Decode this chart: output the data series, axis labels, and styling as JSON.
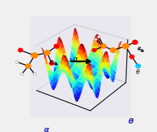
{
  "xlabel": "α",
  "ylabel": "θ",
  "surface_colormap": "jet",
  "background_color": "#f0f0f0",
  "figsize": [
    2.25,
    1.89
  ],
  "dpi": 100,
  "elev": 28,
  "azim": -55,
  "x_range": [
    -3.14159,
    3.14159
  ],
  "y_range": [
    -3.14159,
    3.14159
  ],
  "n_points": 80,
  "panel_color": "#e8e8ee",
  "xlabel_color": "#3333bb",
  "ylabel_color": "#3333bb"
}
